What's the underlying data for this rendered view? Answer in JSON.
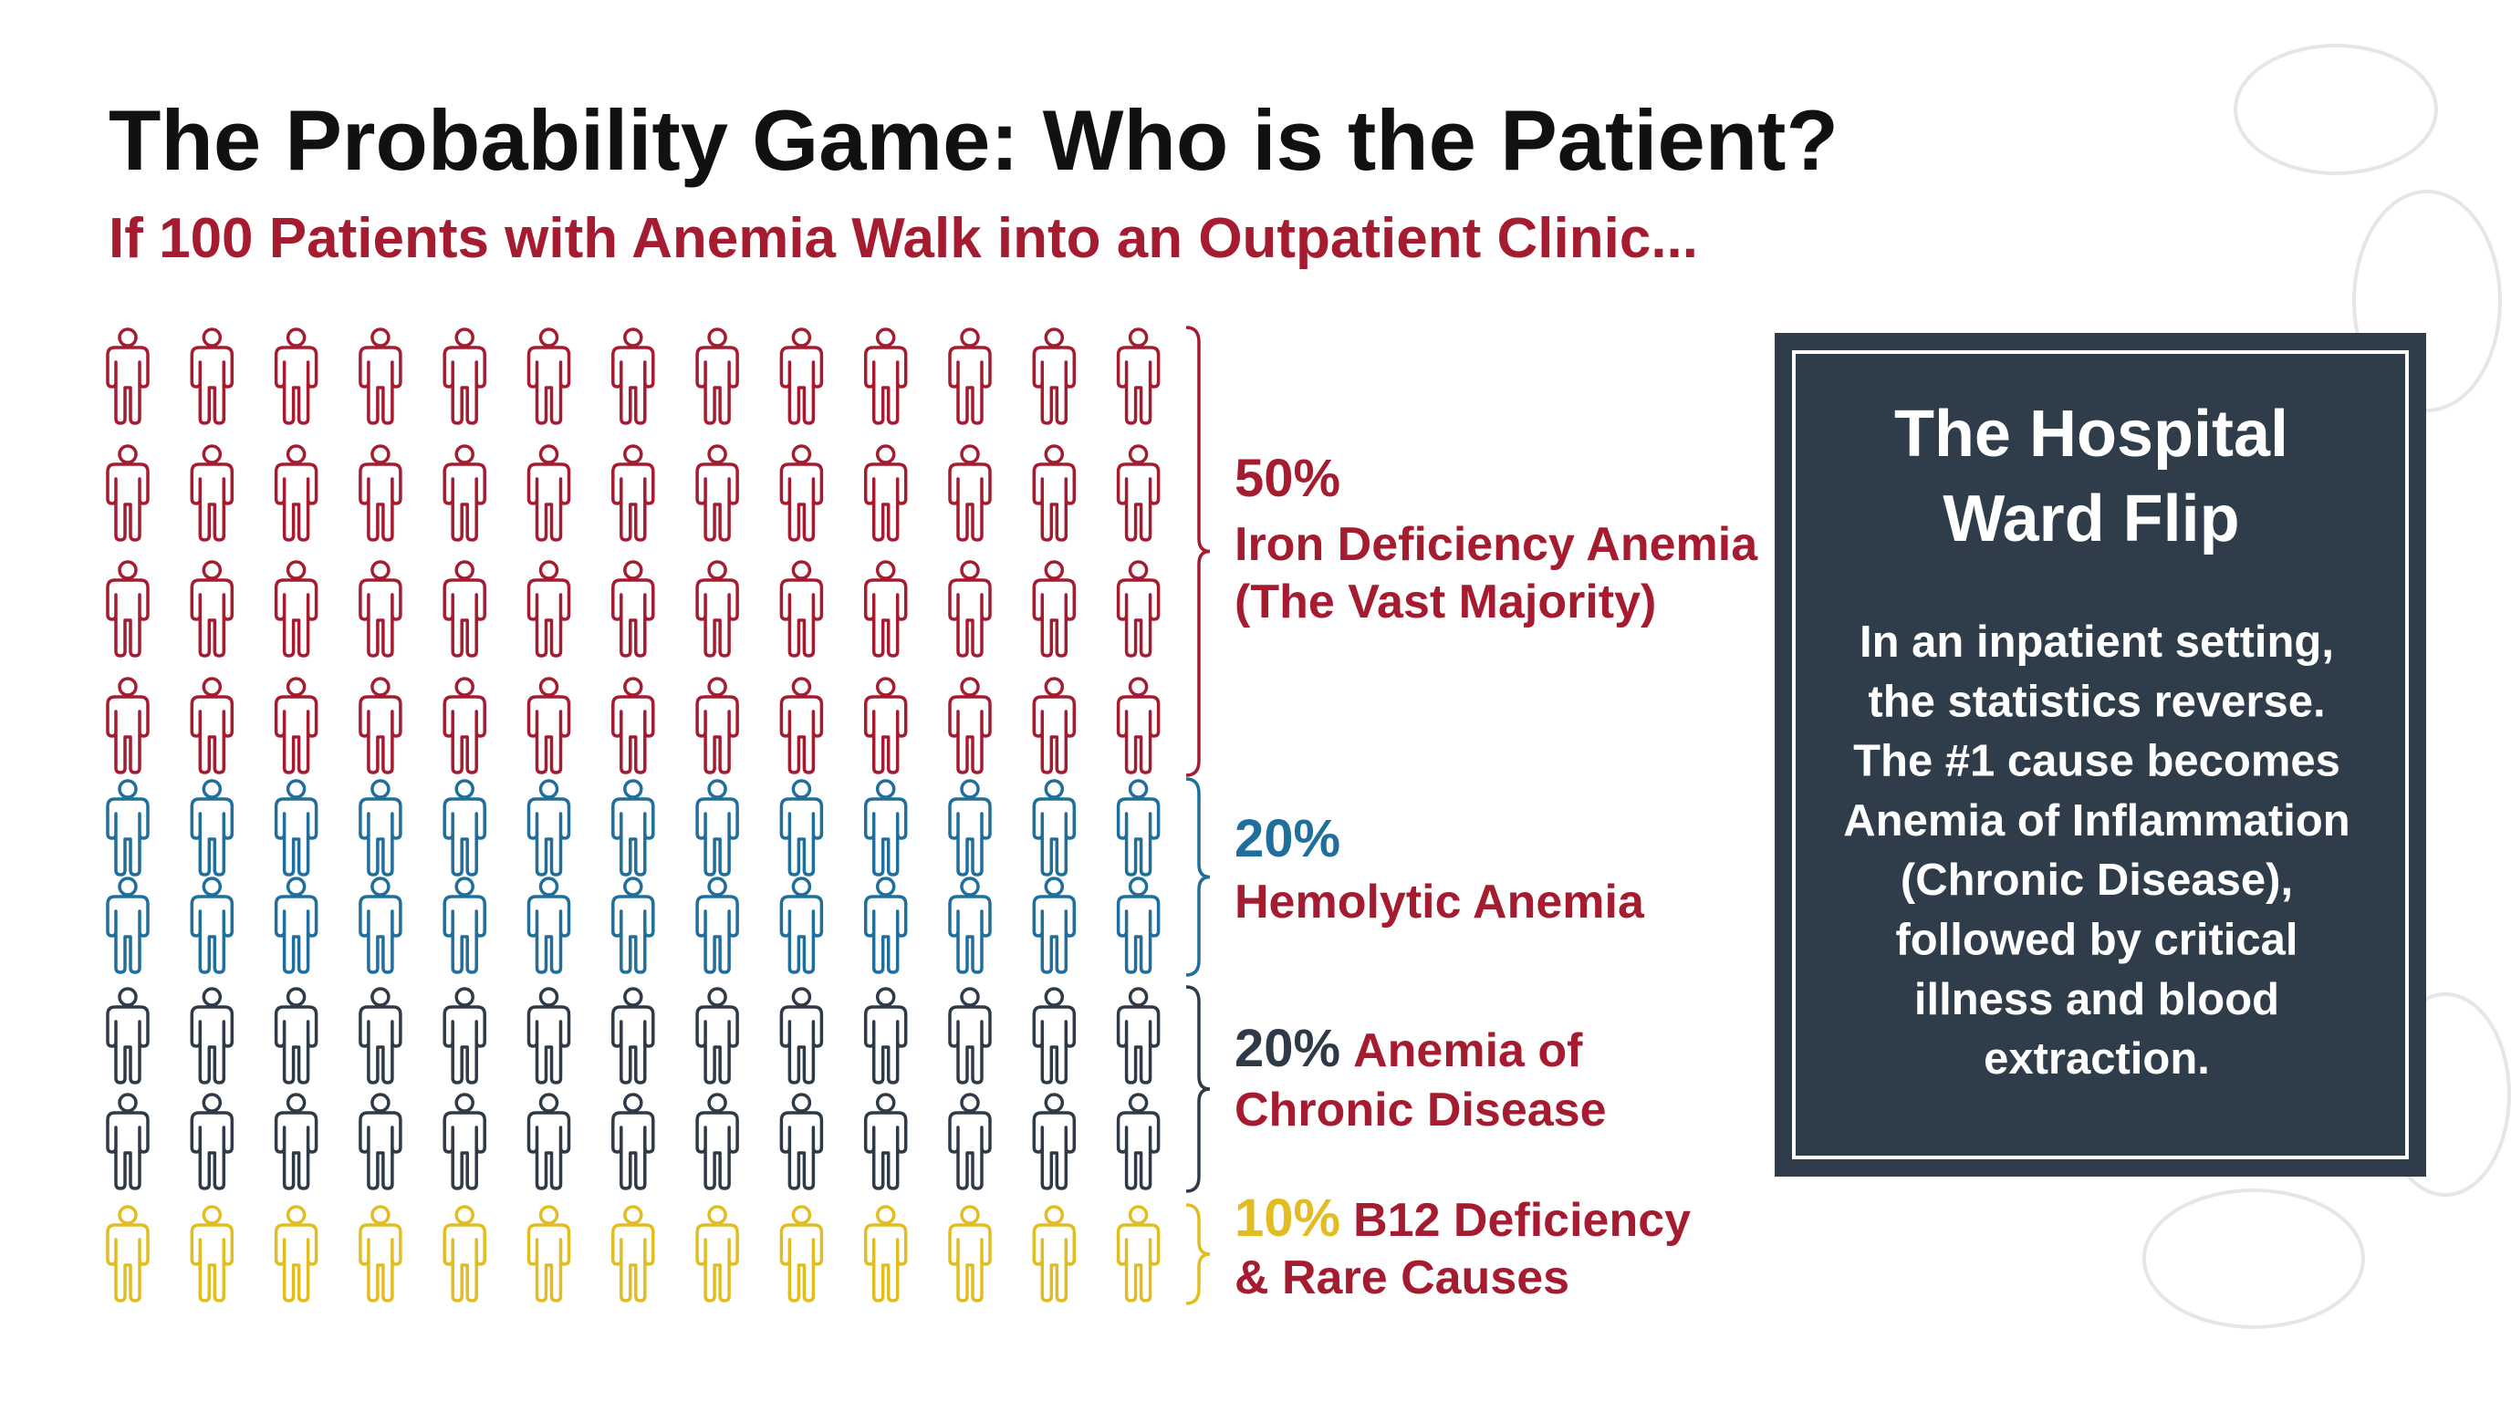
{
  "title": "The Probability Game: Who is the Patient?",
  "subtitle": "If 100 Patients with Anemia Walk into an Outpatient Clinic...",
  "groups": [
    {
      "percent": "50%",
      "lines": [
        "Iron Deficiency Anemia",
        "(The Vast Majority)"
      ],
      "color": "#a51c30"
    },
    {
      "percent": "20%",
      "lines": [
        "Hemolytic Anemia"
      ],
      "color": "#1f6e9c"
    },
    {
      "percent": "20%",
      "lines": [
        "Anemia of",
        "Chronic Disease"
      ],
      "color": "#2e3a47"
    },
    {
      "percent": "10%",
      "lines": [
        "B12 Deficiency",
        "& Rare Causes"
      ],
      "color": "#e2bd22"
    }
  ],
  "panel": {
    "title_lines": [
      "The Hospital",
      "Ward Flip"
    ],
    "body_lines": [
      "In an inpatient setting,",
      "the statistics reverse.",
      "The #1 cause becomes",
      "Anemia of Inflammation",
      "(Chronic Disease),",
      "followed by critical",
      "illness and blood",
      "extraction."
    ]
  }
}
